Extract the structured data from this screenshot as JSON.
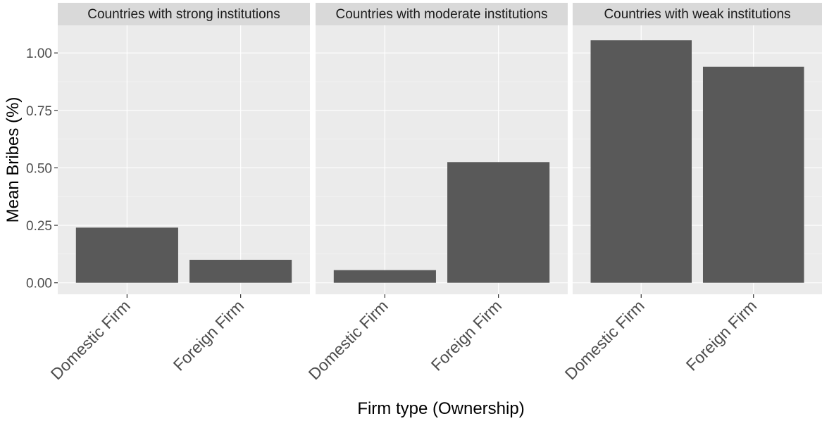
{
  "chart_data": {
    "type": "bar",
    "xlabel": "Firm type (Ownership)",
    "ylabel": "Mean Bribes (%)",
    "ylim": [
      -0.05,
      1.12
    ],
    "yticks": [
      0.0,
      0.25,
      0.5,
      0.75,
      1.0
    ],
    "ytick_labels": [
      "0.00",
      "0.25",
      "0.50",
      "0.75",
      "1.00"
    ],
    "categories": [
      "Domestic Firm",
      "Foreign Firm"
    ],
    "grid": true,
    "facets": [
      {
        "title": "Countries with strong institutions",
        "values": [
          0.24,
          0.1
        ]
      },
      {
        "title": "Countries with moderate institutions",
        "values": [
          0.055,
          0.525
        ]
      },
      {
        "title": "Countries with weak institutions",
        "values": [
          1.055,
          0.94
        ]
      }
    ]
  },
  "colors": {
    "panel_background": "#ebebeb",
    "strip_background": "#d9d9d9",
    "major_grid": "#ffffff",
    "bar_fill": "#595959",
    "tick_color": "#333333"
  }
}
